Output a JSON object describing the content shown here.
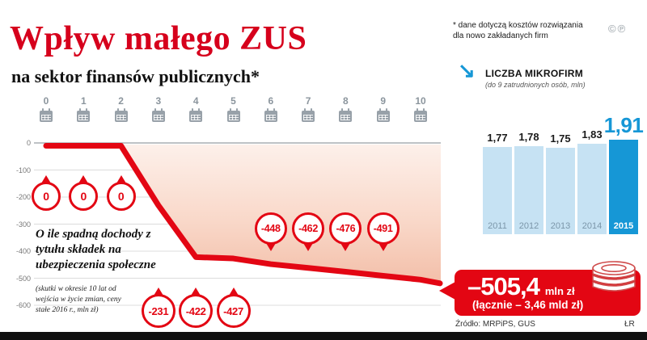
{
  "header": {
    "title": "Wpływ małego ZUS",
    "subtitle": "na sektor finansów publicznych*",
    "footnote": "* dane dotyczą kosztów rozwiązania\ndla nowo zakładanych firm",
    "copyright": "©",
    "phonogram": "℗"
  },
  "timeline": {
    "years": [
      "0",
      "1",
      "2",
      "3",
      "4",
      "5",
      "6",
      "7",
      "8",
      "9",
      "10"
    ]
  },
  "chart_data": [
    {
      "type": "line",
      "title": "O ile spadną dochody z tytułu składek na ubezpieczenia społeczne",
      "note": "(skutki w okresie 10 lat od wejścia w życie zmian, ceny stałe 2016 r., mln zł)",
      "x": [
        0,
        1,
        2,
        3,
        4,
        5,
        6,
        7,
        8,
        9,
        10
      ],
      "values": [
        0,
        0,
        0,
        -231,
        -422,
        -427,
        -448,
        -462,
        -476,
        -491,
        -505.4
      ],
      "callout_labels": [
        "0",
        "0",
        "0",
        "-231",
        "-422",
        "-427",
        "-448",
        "-462",
        "-476",
        "-491"
      ],
      "ylim": [
        -600,
        0
      ],
      "yticks": [
        0,
        -100,
        -200,
        -300,
        -400,
        -500,
        -600
      ],
      "unit": "mln zł"
    },
    {
      "type": "bar",
      "title": "LICZBA MIKROFIRM",
      "subtitle": "(do 9 zatrudnionych osób, mln)",
      "categories": [
        "2011",
        "2012",
        "2013",
        "2014",
        "2015"
      ],
      "values": [
        1.77,
        1.78,
        1.75,
        1.83,
        1.91
      ],
      "value_labels": [
        "1,77",
        "1,78",
        "1,75",
        "1,83",
        "1,91"
      ],
      "highlight_index": 4
    }
  ],
  "badge": {
    "value": "–505,4",
    "unit": "mln zł",
    "total": "(łącznie – 3,46 mld zł)"
  },
  "footer": {
    "source": "Źródło: MRPiPS, GUS",
    "credit": "ŁR"
  },
  "colors": {
    "red": "#e30613",
    "title_red": "#d6001c",
    "blue": "#1697d6",
    "bar_light": "#c6e2f3"
  }
}
